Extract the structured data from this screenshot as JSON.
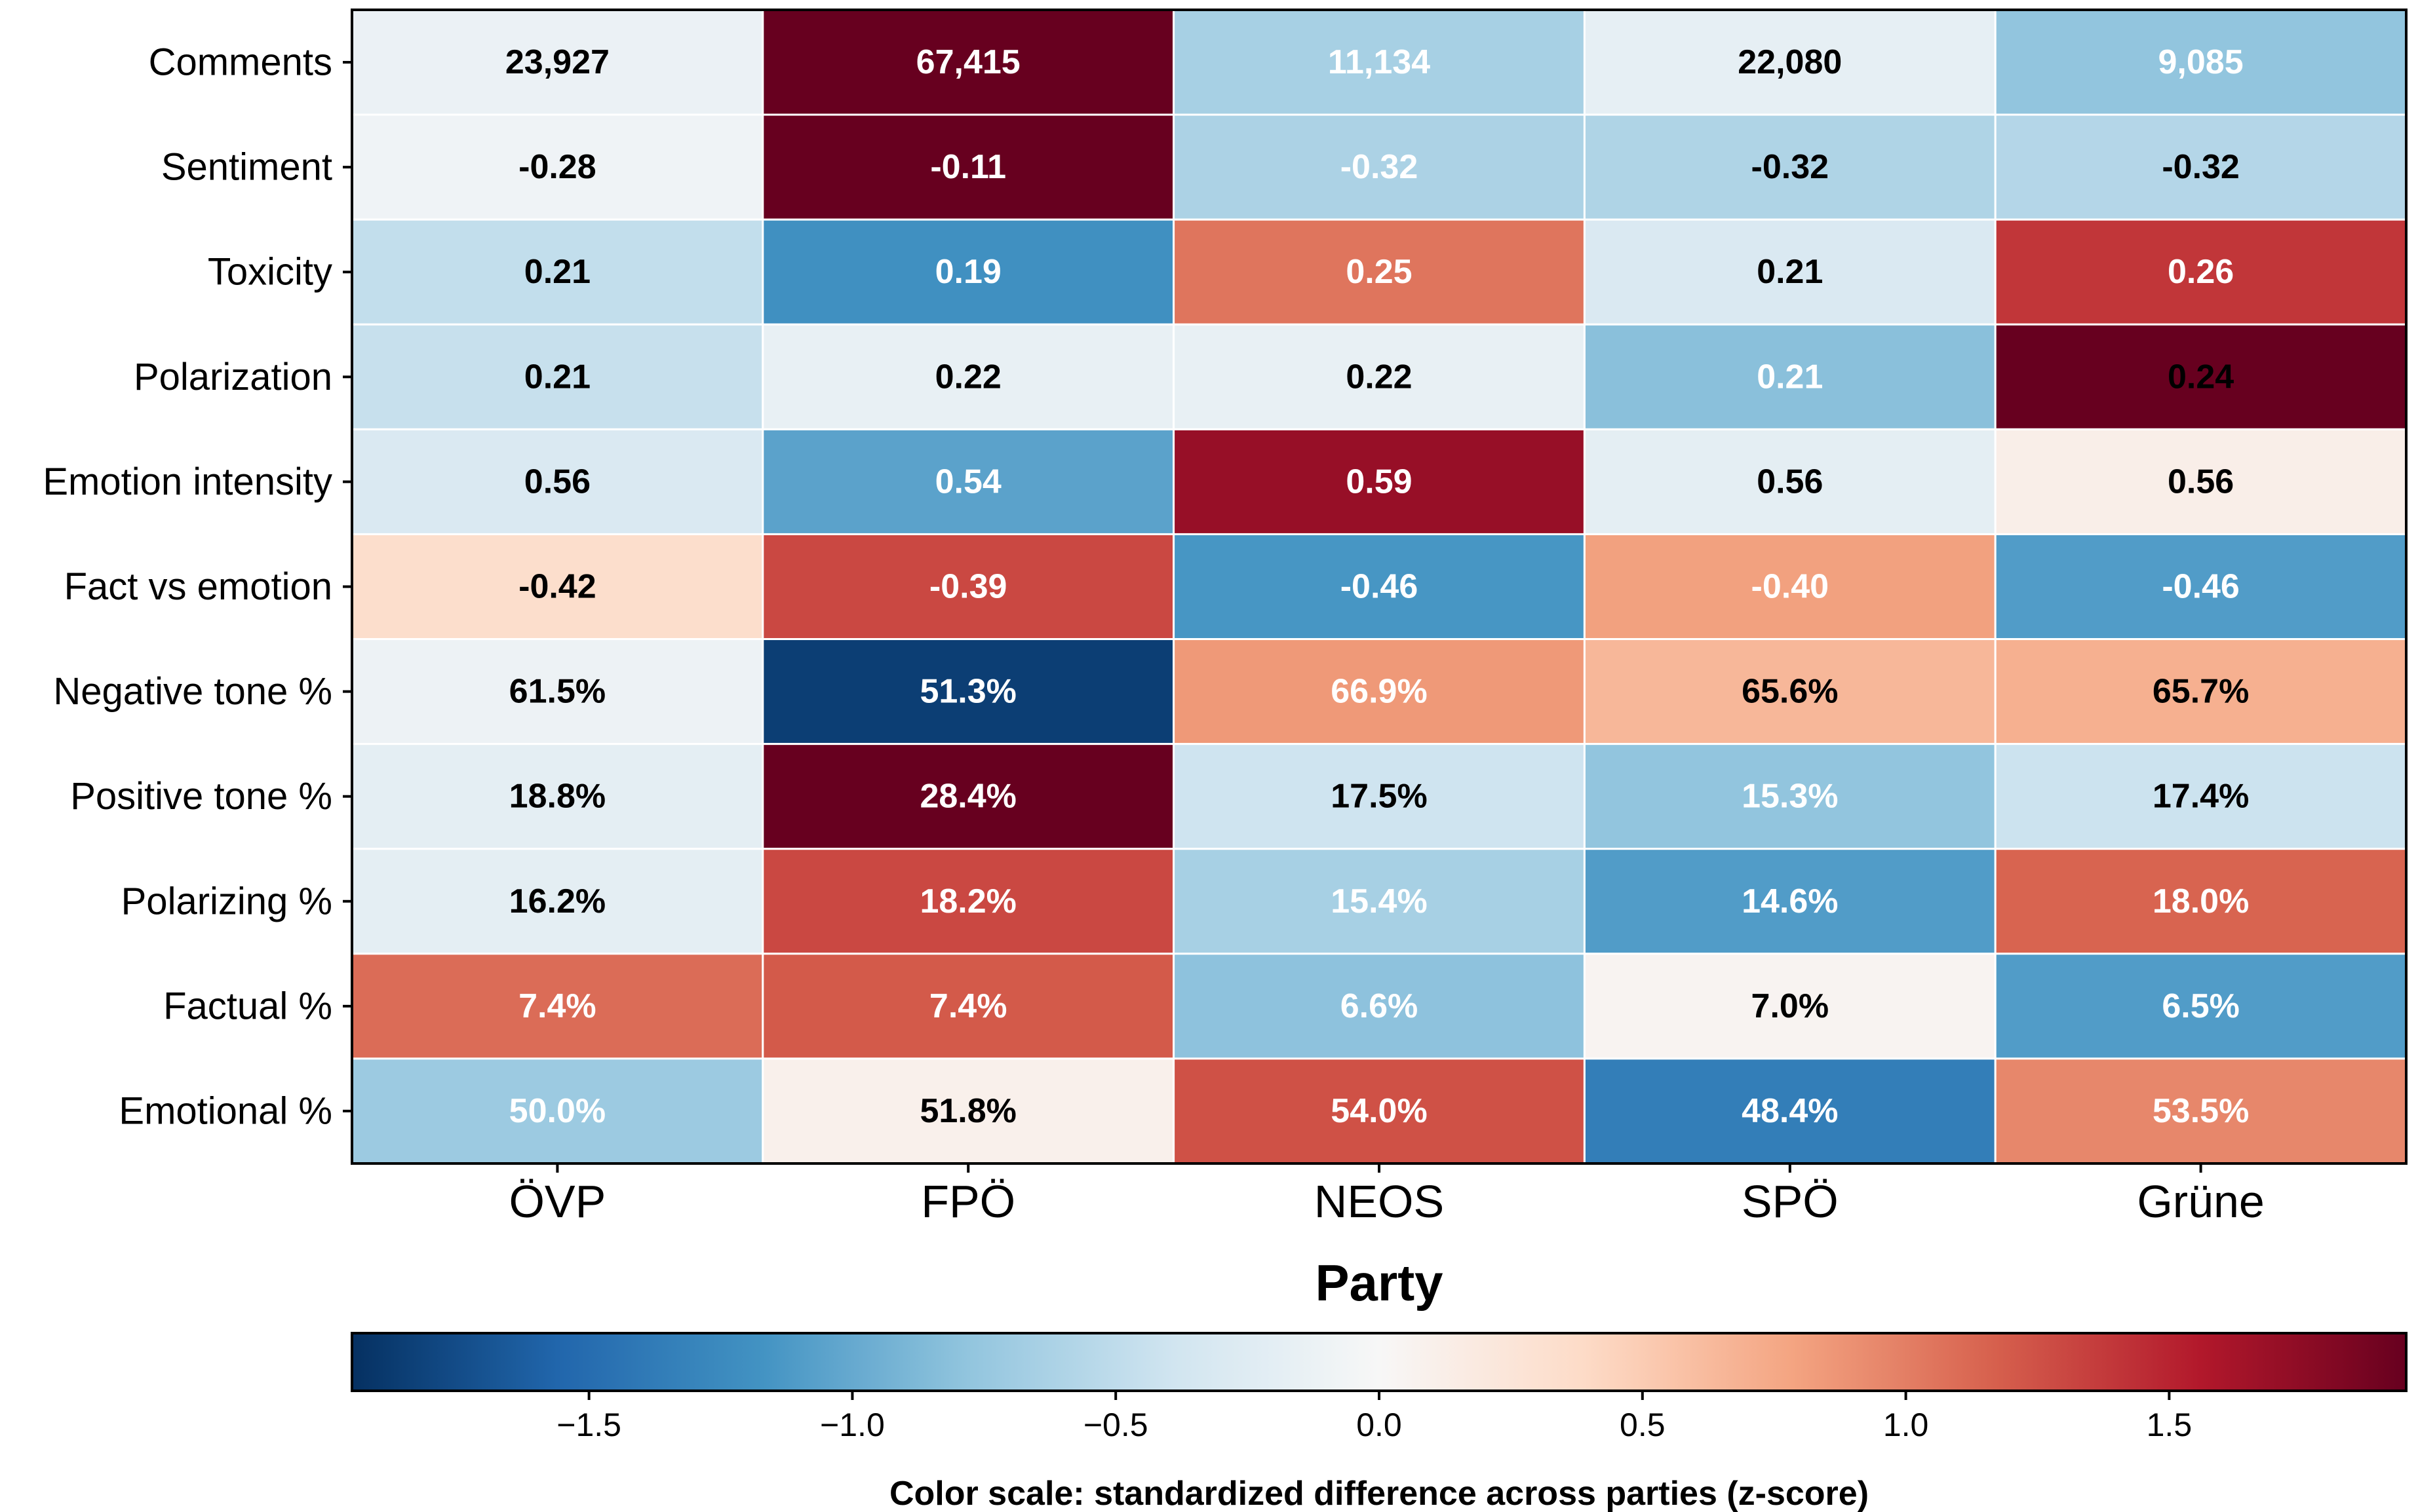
{
  "chart_data": {
    "type": "heatmap",
    "title": "",
    "xlabel": "Party",
    "ylabel": "",
    "columns": [
      "ÖVP",
      "FPÖ",
      "NEOS",
      "SPÖ",
      "Grüne"
    ],
    "rows": [
      "Comments",
      "Sentiment",
      "Toxicity",
      "Polarization",
      "Emotion intensity",
      "Fact vs emotion",
      "Negative tone %",
      "Positive tone %",
      "Polarizing %",
      "Factual %",
      "Emotional %"
    ],
    "cell_labels": [
      [
        "23,927",
        "67,415",
        "11,134",
        "22,080",
        "9,085"
      ],
      [
        "-0.28",
        "-0.11",
        "-0.32",
        "-0.32",
        "-0.32"
      ],
      [
        "0.21",
        "0.19",
        "0.25",
        "0.21",
        "0.26"
      ],
      [
        "0.21",
        "0.22",
        "0.22",
        "0.21",
        "0.24"
      ],
      [
        "0.56",
        "0.54",
        "0.59",
        "0.56",
        "0.56"
      ],
      [
        "-0.42",
        "-0.39",
        "-0.46",
        "-0.40",
        "-0.46"
      ],
      [
        "61.5%",
        "51.3%",
        "66.9%",
        "65.6%",
        "65.7%"
      ],
      [
        "18.8%",
        "28.4%",
        "17.5%",
        "15.3%",
        "17.4%"
      ],
      [
        "16.2%",
        "18.2%",
        "15.4%",
        "14.6%",
        "18.0%"
      ],
      [
        "7.4%",
        "7.4%",
        "6.6%",
        "7.0%",
        "6.5%"
      ],
      [
        "50.0%",
        "51.8%",
        "54.0%",
        "48.4%",
        "53.5%"
      ]
    ],
    "z_scores": [
      [
        -0.12,
        1.95,
        -0.65,
        -0.17,
        -0.78
      ],
      [
        -0.08,
        1.95,
        -0.62,
        -0.6,
        -0.57
      ],
      [
        -0.48,
        -1.2,
        1.05,
        -0.3,
        1.4
      ],
      [
        -0.45,
        -0.15,
        -0.15,
        -0.82,
        1.95
      ],
      [
        -0.3,
        -1.05,
        1.7,
        -0.2,
        0.12
      ],
      [
        0.35,
        1.3,
        -1.15,
        0.8,
        -1.1
      ],
      [
        -0.1,
        -1.85,
        0.85,
        0.65,
        0.7
      ],
      [
        -0.2,
        1.95,
        -0.4,
        -0.78,
        -0.42
      ],
      [
        -0.2,
        1.3,
        -0.65,
        -1.1,
        1.15
      ],
      [
        1.1,
        1.2,
        -0.8,
        0.05,
        -1.1
      ],
      [
        -0.72,
        0.1,
        1.25,
        -1.35,
        0.95
      ]
    ],
    "text_colors": [
      [
        "dark",
        "light",
        "light",
        "dark",
        "light"
      ],
      [
        "dark",
        "light",
        "light",
        "dark",
        "dark"
      ],
      [
        "dark",
        "light",
        "light",
        "dark",
        "light"
      ],
      [
        "dark",
        "dark",
        "dark",
        "light",
        "dark"
      ],
      [
        "dark",
        "light",
        "light",
        "dark",
        "dark"
      ],
      [
        "dark",
        "light",
        "light",
        "light",
        "light"
      ],
      [
        "dark",
        "light",
        "light",
        "dark",
        "dark"
      ],
      [
        "dark",
        "light",
        "dark",
        "light",
        "dark"
      ],
      [
        "dark",
        "light",
        "light",
        "light",
        "light"
      ],
      [
        "light",
        "light",
        "light",
        "dark",
        "light"
      ],
      [
        "light",
        "dark",
        "light",
        "light",
        "light"
      ]
    ],
    "colormap": "RdBu_r",
    "colorbar": {
      "range": [
        -1.95,
        1.95
      ],
      "ticks": [
        -1.5,
        -1.0,
        -0.5,
        0.0,
        0.5,
        1.0,
        1.5
      ],
      "tick_labels": [
        "−1.5",
        "−1.0",
        "−0.5",
        "0.0",
        "0.5",
        "1.0",
        "1.5"
      ],
      "label": "Color scale: standardized difference across parties (z-score)",
      "orientation": "horizontal",
      "position": "bottom"
    },
    "grid": false,
    "legend": "none"
  },
  "colors": {
    "cell_border": "#ffffff",
    "frame": "#000000",
    "text_dark": "#000000",
    "text_light": "#ffffff"
  }
}
